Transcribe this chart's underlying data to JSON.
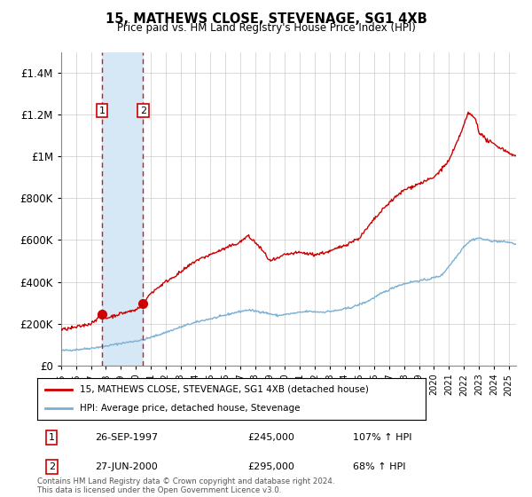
{
  "title": "15, MATHEWS CLOSE, STEVENAGE, SG1 4XB",
  "subtitle": "Price paid vs. HM Land Registry's House Price Index (HPI)",
  "transactions": [
    {
      "id": 1,
      "date_num": 1997.74,
      "price": 245000,
      "label": "26-SEP-1997",
      "pct": "107%",
      "dir": "↑"
    },
    {
      "id": 2,
      "date_num": 2000.49,
      "price": 295000,
      "label": "27-JUN-2000",
      "pct": "68%",
      "dir": "↑"
    }
  ],
  "legend_line1": "15, MATHEWS CLOSE, STEVENAGE, SG1 4XB (detached house)",
  "legend_line2": "HPI: Average price, detached house, Stevenage",
  "footer": "Contains HM Land Registry data © Crown copyright and database right 2024.\nThis data is licensed under the Open Government Licence v3.0.",
  "red_color": "#cc0000",
  "blue_color": "#7ab0d4",
  "shade_color": "#d6e8f5",
  "ylim": [
    0,
    1500000
  ],
  "xlim": [
    1995.0,
    2025.5
  ],
  "yticks": [
    0,
    200000,
    400000,
    600000,
    800000,
    1000000,
    1200000,
    1400000
  ],
  "hpi_keypoints_x": [
    1995.0,
    1996.0,
    1997.0,
    1998.0,
    1999.0,
    2000.5,
    2001.5,
    2002.5,
    2003.5,
    2004.5,
    2005.5,
    2006.5,
    2007.5,
    2008.5,
    2009.5,
    2010.5,
    2011.5,
    2012.5,
    2013.5,
    2014.5,
    2015.5,
    2016.5,
    2017.5,
    2018.5,
    2019.5,
    2020.5,
    2021.5,
    2022.0,
    2022.5,
    2023.0,
    2023.5,
    2024.0,
    2025.0,
    2025.5
  ],
  "hpi_keypoints_y": [
    70000,
    75000,
    82000,
    92000,
    105000,
    122000,
    145000,
    170000,
    195000,
    215000,
    230000,
    250000,
    265000,
    255000,
    238000,
    248000,
    258000,
    255000,
    262000,
    278000,
    305000,
    345000,
    380000,
    400000,
    410000,
    430000,
    520000,
    570000,
    600000,
    610000,
    600000,
    595000,
    590000,
    580000
  ],
  "red_keypoints_x": [
    1995.0,
    1996.0,
    1997.0,
    1997.74,
    1998.0,
    1999.0,
    2000.0,
    2000.49,
    2001.0,
    2002.0,
    2003.0,
    2004.0,
    2005.0,
    2006.0,
    2007.0,
    2007.5,
    2008.0,
    2008.5,
    2009.0,
    2009.5,
    2010.0,
    2011.0,
    2012.0,
    2013.0,
    2014.0,
    2015.0,
    2016.0,
    2017.0,
    2018.0,
    2019.0,
    2020.0,
    2021.0,
    2021.5,
    2022.0,
    2022.3,
    2022.8,
    2023.0,
    2023.5,
    2024.0,
    2025.0,
    2025.5
  ],
  "red_keypoints_y": [
    170000,
    182000,
    200000,
    245000,
    225000,
    248000,
    265000,
    295000,
    345000,
    400000,
    445000,
    500000,
    530000,
    560000,
    590000,
    620000,
    590000,
    550000,
    500000,
    510000,
    530000,
    540000,
    530000,
    545000,
    575000,
    610000,
    700000,
    780000,
    840000,
    870000,
    900000,
    980000,
    1060000,
    1150000,
    1210000,
    1180000,
    1120000,
    1080000,
    1060000,
    1020000,
    1000000
  ]
}
